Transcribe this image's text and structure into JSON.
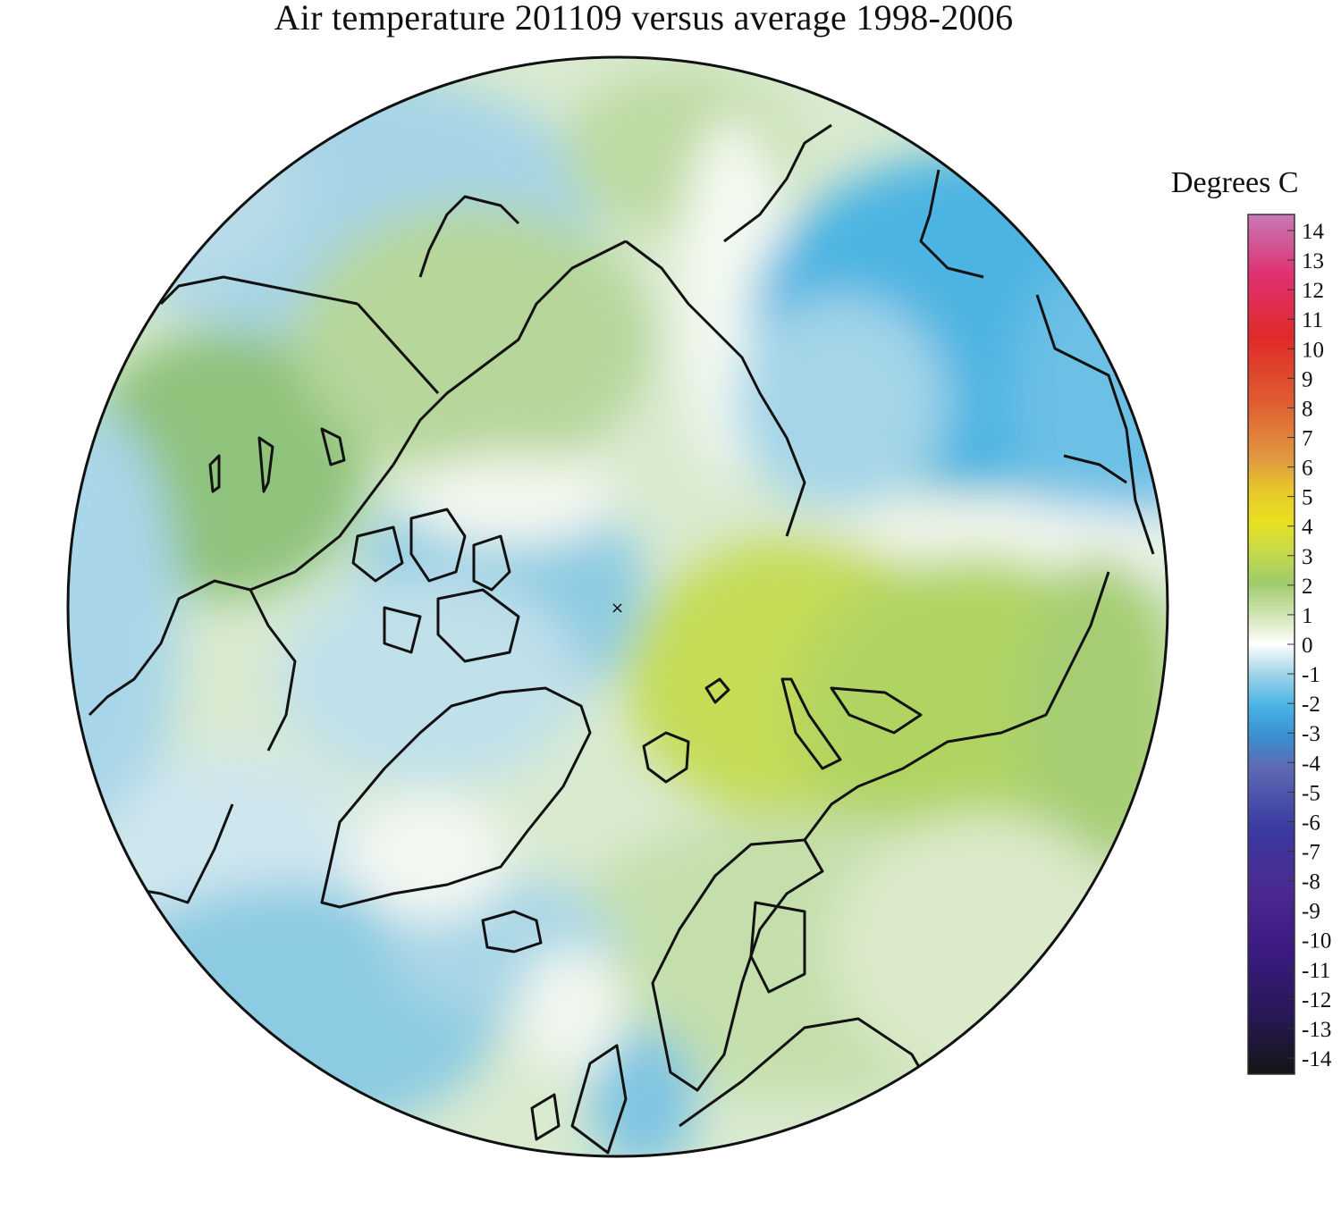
{
  "title": "Air temperature 201109 versus average 1998-2006",
  "legend": {
    "title": "Degrees C",
    "ticks": [
      "14",
      "13",
      "12",
      "11",
      "10",
      "9",
      "8",
      "7",
      "6",
      "5",
      "4",
      "3",
      "2",
      "1",
      "0",
      "-1",
      "-2",
      "-3",
      "-4",
      "-5",
      "-6",
      "-7",
      "-8",
      "-9",
      "-10",
      "-11",
      "-12",
      "-13",
      "-14"
    ],
    "min": -14,
    "max": 14,
    "color_stops": [
      {
        "v": 14,
        "c": "#c878b8"
      },
      {
        "v": 12,
        "c": "#e03070"
      },
      {
        "v": 10,
        "c": "#e02a28"
      },
      {
        "v": 8,
        "c": "#e05a30"
      },
      {
        "v": 6,
        "c": "#e09a40"
      },
      {
        "v": 5,
        "c": "#e8c82a"
      },
      {
        "v": 4,
        "c": "#e8e020"
      },
      {
        "v": 3,
        "c": "#c6da4a"
      },
      {
        "v": 2,
        "c": "#9fcb6c"
      },
      {
        "v": 1,
        "c": "#cfe3b0"
      },
      {
        "v": 0,
        "c": "#ffffff"
      },
      {
        "v": -1,
        "c": "#9cd2e6"
      },
      {
        "v": -2,
        "c": "#48b4e4"
      },
      {
        "v": -3,
        "c": "#3a8fd0"
      },
      {
        "v": -4,
        "c": "#5e6ab4"
      },
      {
        "v": -6,
        "c": "#3a3aa0"
      },
      {
        "v": -8,
        "c": "#4a2a90"
      },
      {
        "v": -10,
        "c": "#3a1a80"
      },
      {
        "v": -12,
        "c": "#281858"
      },
      {
        "v": -14,
        "c": "#141414"
      }
    ]
  },
  "map": {
    "projection": "north polar stereographic",
    "pole_marker": "×"
  }
}
